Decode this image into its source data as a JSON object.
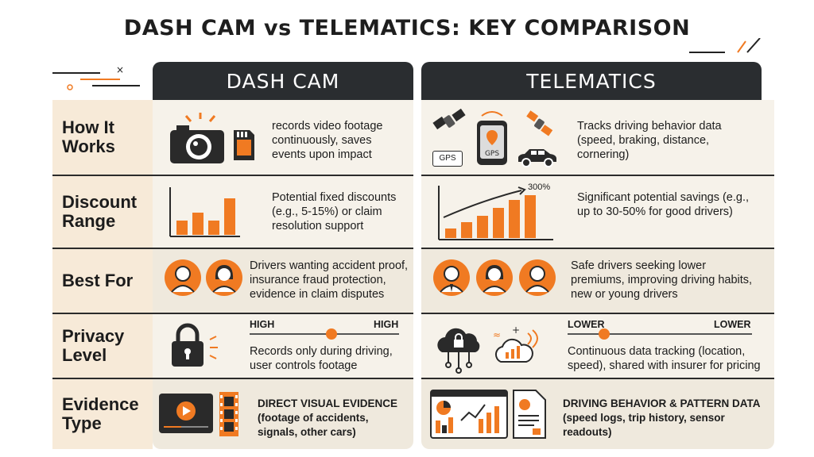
{
  "title": "DASH CAM vs TELEMATICS: KEY COMPARISON",
  "columns": {
    "dash_cam": "DASH CAM",
    "telematics": "TELEMATICS"
  },
  "rows": [
    {
      "label": "How It Works",
      "dash_cam": "records video footage continuously, saves events upon impact",
      "telematics": "Tracks driving behavior data (speed, braking, distance, cornering)",
      "icons_dash": [
        "camera-icon",
        "sd-card-icon"
      ],
      "icons_tele": [
        "satellite-icon",
        "gps-device-icon",
        "car-icon"
      ],
      "gps_labels": [
        "GPS",
        "GPS"
      ]
    },
    {
      "label": "Discount Range",
      "dash_cam": "Potential fixed discounts (e.g., 5-15%) or claim resolution support",
      "telematics": "Significant potential savings (e.g., up to 30-50% for good drivers)",
      "icons_dash": [
        "bar-chart-icon"
      ],
      "icons_tele": [
        "rising-bar-chart-icon"
      ],
      "chart_label": "300%"
    },
    {
      "label": "Best For",
      "dash_cam": "Drivers wanting accident proof, insurance fraud protection, evidence in claim disputes",
      "telematics": "Safe drivers seeking lower premiums, improving driving habits, new or young drivers",
      "icons_dash": [
        "person-icon",
        "person-icon"
      ],
      "icons_tele": [
        "person-icon",
        "person-icon",
        "person-icon"
      ]
    },
    {
      "label": "Privacy Level",
      "dash_cam": "Records only during driving, user controls footage",
      "telematics": "Continuous data tracking (location, speed), shared with insurer for pricing",
      "dash_scale": {
        "left": "HIGH",
        "right": "HIGH",
        "level": 0.55
      },
      "tele_scale": {
        "left": "LOWER",
        "right": "LOWER",
        "level": 0.2
      },
      "icons_dash": [
        "padlock-icon"
      ],
      "icons_tele": [
        "cloud-lock-icon",
        "cloud-signal-icon"
      ]
    },
    {
      "label": "Evidence Type",
      "dash_cam": "DIRECT VISUAL EVIDENCE (footage of accidents, signals, other cars)",
      "telematics": "DRIVING BEHAVIOR & PATTERN DATA (speed logs, trip history, sensor readouts)",
      "icons_dash": [
        "video-player-icon",
        "film-strip-icon"
      ],
      "icons_tele": [
        "dashboard-icon",
        "report-icon"
      ]
    }
  ],
  "colors": {
    "accent": "#f07a22",
    "dark": "#2a2d30",
    "label_bg": "#f7ead8",
    "cell_bg": "#f6f2ea"
  }
}
